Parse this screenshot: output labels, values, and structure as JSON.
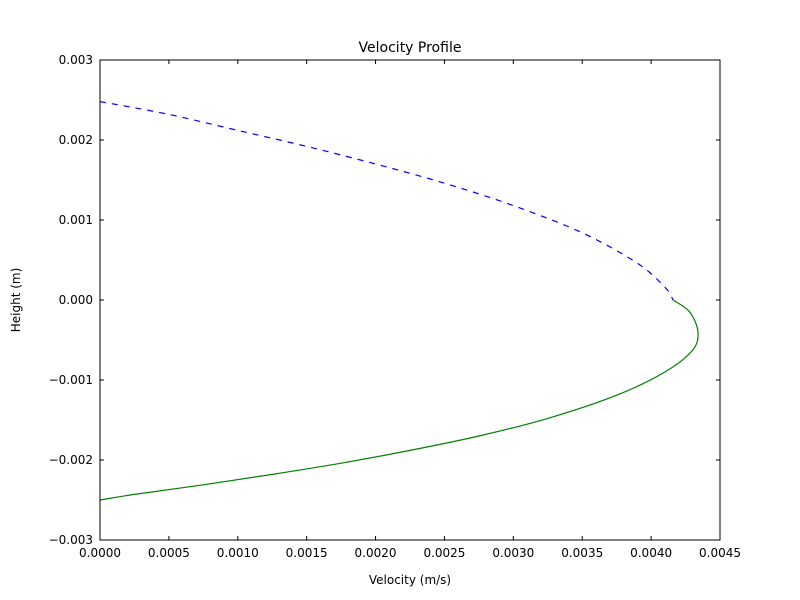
{
  "chart_data": {
    "type": "line",
    "title": "Velocity Profile",
    "xlabel": "Velocity (m/s)",
    "ylabel": "Height (m)",
    "xlim": [
      0.0,
      0.0045
    ],
    "ylim": [
      -0.003,
      0.003
    ],
    "grid": false,
    "x_ticks": [
      0.0,
      0.0005,
      0.001,
      0.0015,
      0.002,
      0.0025,
      0.003,
      0.0035,
      0.004,
      0.0045
    ],
    "x_tick_labels": [
      "0.0000",
      "0.0005",
      "0.0010",
      "0.0015",
      "0.0020",
      "0.0025",
      "0.0030",
      "0.0035",
      "0.0040",
      "0.0045"
    ],
    "y_ticks": [
      -0.003,
      -0.002,
      -0.001,
      0.0,
      0.001,
      0.002,
      0.003
    ],
    "y_tick_labels": [
      "−0.003",
      "−0.002",
      "−0.001",
      "0.000",
      "0.001",
      "0.002",
      "0.003"
    ],
    "series": [
      {
        "color": "#0000ff",
        "style": "dashed",
        "points": [
          {
            "x": 0.0,
            "y": 0.00248
          },
          {
            "x": 0.0005,
            "y": 0.00232
          },
          {
            "x": 0.001,
            "y": 0.00212
          },
          {
            "x": 0.0015,
            "y": 0.00192
          },
          {
            "x": 0.002,
            "y": 0.0017
          },
          {
            "x": 0.0025,
            "y": 0.00146
          },
          {
            "x": 0.003,
            "y": 0.00118
          },
          {
            "x": 0.0035,
            "y": 0.00084
          },
          {
            "x": 0.0039,
            "y": 0.00046
          },
          {
            "x": 0.0041,
            "y": 0.00016
          },
          {
            "x": 0.00416,
            "y": 0.0
          }
        ]
      },
      {
        "color": "#008000",
        "style": "solid",
        "points": [
          {
            "x": 0.00416,
            "y": 0.0
          },
          {
            "x": 0.00428,
            "y": -0.00015
          },
          {
            "x": 0.00434,
            "y": -0.0004
          },
          {
            "x": 0.0043,
            "y": -0.00063
          },
          {
            "x": 0.0041,
            "y": -0.0009
          },
          {
            "x": 0.00375,
            "y": -0.00119
          },
          {
            "x": 0.00325,
            "y": -0.00148
          },
          {
            "x": 0.00275,
            "y": -0.0017
          },
          {
            "x": 0.00225,
            "y": -0.00188
          },
          {
            "x": 0.00175,
            "y": -0.00204
          },
          {
            "x": 0.00125,
            "y": -0.00218
          },
          {
            "x": 0.00075,
            "y": -0.00231
          },
          {
            "x": 0.00025,
            "y": -0.00243
          },
          {
            "x": 0.0,
            "y": -0.0025
          }
        ]
      }
    ]
  }
}
